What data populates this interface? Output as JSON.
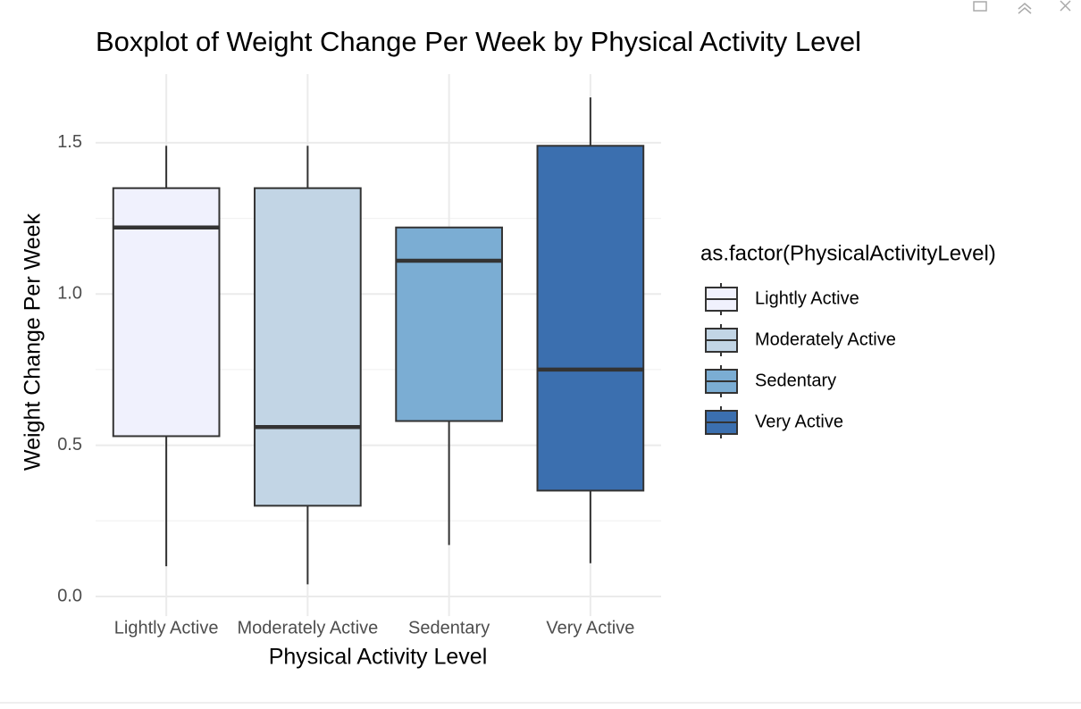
{
  "chart_data": {
    "type": "boxplot",
    "title": "Boxplot of Weight Change Per Week by Physical Activity Level",
    "x_label": "Physical Activity Level",
    "y_label": "Weight Change Per Week",
    "legend_title": "as.factor(PhysicalActivityLevel)",
    "legend_position": "right",
    "categories": [
      "Lightly Active",
      "Moderately Active",
      "Sedentary",
      "Very Active"
    ],
    "series": [
      {
        "name": "Lightly Active",
        "color": "#f0f1fd",
        "whisker_low": 0.1,
        "q1": 0.53,
        "median": 1.22,
        "q3": 1.35,
        "whisker_high": 1.49
      },
      {
        "name": "Moderately Active",
        "color": "#c2d5e5",
        "whisker_low": 0.04,
        "q1": 0.3,
        "median": 0.56,
        "q3": 1.35,
        "whisker_high": 1.49
      },
      {
        "name": "Sedentary",
        "color": "#7badd3",
        "whisker_low": 0.17,
        "q1": 0.58,
        "median": 1.11,
        "q3": 1.22,
        "whisker_high": 1.22
      },
      {
        "name": "Very Active",
        "color": "#3b6faf",
        "whisker_low": 0.11,
        "q1": 0.35,
        "median": 0.75,
        "q3": 1.49,
        "whisker_high": 1.65
      }
    ],
    "ylim": [
      -0.065,
      1.727
    ],
    "yticks": [
      {
        "value": 0,
        "label": "0.0"
      },
      0.5,
      {
        "value": 1,
        "label": "1.0"
      },
      1.5
    ],
    "y_minor_gridlines": [
      0.25,
      0.75,
      1.25
    ],
    "grid": true
  }
}
